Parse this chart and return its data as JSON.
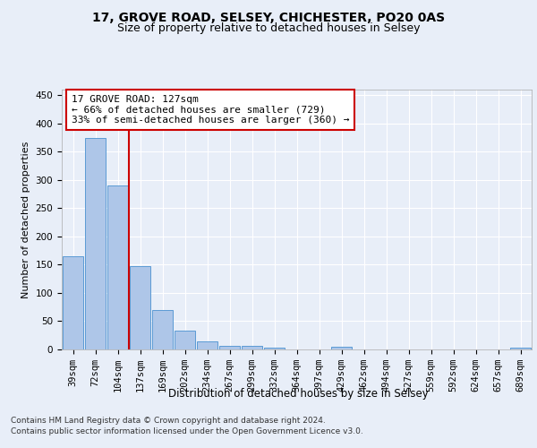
{
  "title1": "17, GROVE ROAD, SELSEY, CHICHESTER, PO20 0AS",
  "title2": "Size of property relative to detached houses in Selsey",
  "xlabel": "Distribution of detached houses by size in Selsey",
  "ylabel": "Number of detached properties",
  "categories": [
    "39sqm",
    "72sqm",
    "104sqm",
    "137sqm",
    "169sqm",
    "202sqm",
    "234sqm",
    "267sqm",
    "299sqm",
    "332sqm",
    "364sqm",
    "397sqm",
    "429sqm",
    "462sqm",
    "494sqm",
    "527sqm",
    "559sqm",
    "592sqm",
    "624sqm",
    "657sqm",
    "689sqm"
  ],
  "values": [
    165,
    375,
    290,
    148,
    70,
    33,
    14,
    7,
    6,
    3,
    0,
    0,
    4,
    0,
    0,
    0,
    0,
    0,
    0,
    0,
    3
  ],
  "bar_color": "#aec6e8",
  "bar_edge_color": "#5b9bd5",
  "vline_color": "#cc0000",
  "annotation_text": "17 GROVE ROAD: 127sqm\n← 66% of detached houses are smaller (729)\n33% of semi-detached houses are larger (360) →",
  "annotation_box_color": "#ffffff",
  "annotation_box_edge": "#cc0000",
  "ylim": [
    0,
    460
  ],
  "yticks": [
    0,
    50,
    100,
    150,
    200,
    250,
    300,
    350,
    400,
    450
  ],
  "bg_color": "#e8eef8",
  "plot_bg_color": "#e8eef8",
  "grid_color": "#ffffff",
  "footer1": "Contains HM Land Registry data © Crown copyright and database right 2024.",
  "footer2": "Contains public sector information licensed under the Open Government Licence v3.0.",
  "title1_fontsize": 10,
  "title2_fontsize": 9,
  "xlabel_fontsize": 8.5,
  "ylabel_fontsize": 8,
  "tick_fontsize": 7.5,
  "annotation_fontsize": 8,
  "footer_fontsize": 6.5
}
